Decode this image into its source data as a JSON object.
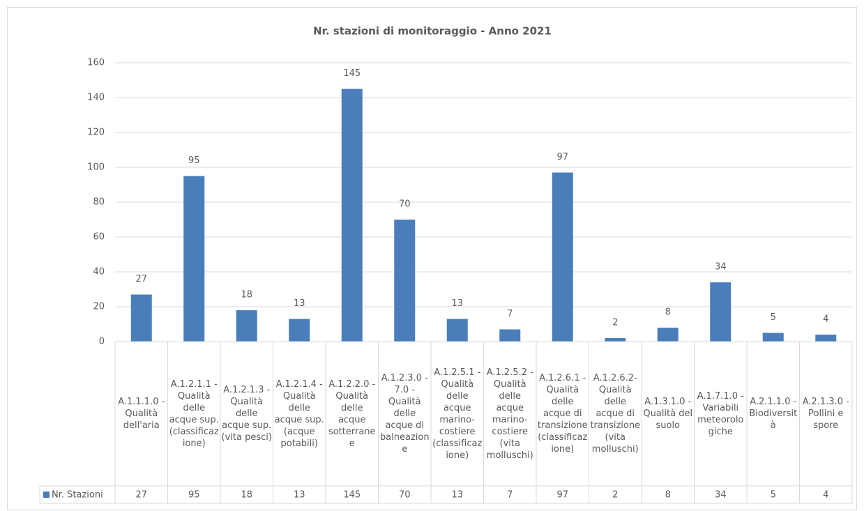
{
  "chart_data": {
    "type": "bar",
    "title": "Nr. stazioni di monitoraggio - Anno 2021",
    "categories": [
      "A.1.1.1.0 - Qualità dell'aria",
      "A.1.2.1.1 - Qualità delle acque sup. (classificazione)",
      "A.1.2.1.3 - Qualità delle acque sup. (vita pesci)",
      "A.1.2.1.4 - Qualità delle acque sup. (acque potabili)",
      "A.1.2.2.0 - Qualità delle acque sotterranee",
      "A.1.2.3.0 - 7.0 - Qualità delle acque di balneazione",
      "A.1.2.5.1 - Qualità delle acque marino-costiere (classificazione)",
      "A.1.2.5.2 - Qualità delle acque marino-costiere (vita molluschi)",
      "A.1.2.6.1 - Qualità delle acque di transizione (classificazione)",
      "A.1.2.6.2- Qualità delle acque di transizione (vita molluschi)",
      "A.1.3.1.0 - Qualità del suolo",
      "A.1.7.1.0 - Variabili meteorologiche",
      "A.2.1.1.0 - Biodiversità",
      "A.2.1.3.0 - Pollini e spore"
    ],
    "series": [
      {
        "name": "Nr. Stazioni",
        "color": "#4a7ebb",
        "values": [
          27,
          95,
          18,
          13,
          145,
          70,
          13,
          7,
          97,
          2,
          8,
          34,
          5,
          4
        ]
      }
    ],
    "ylim": [
      0,
      160
    ],
    "yticks": [
      0,
      20,
      40,
      60,
      80,
      100,
      120,
      140,
      160
    ],
    "grid": true,
    "data_table": true
  }
}
